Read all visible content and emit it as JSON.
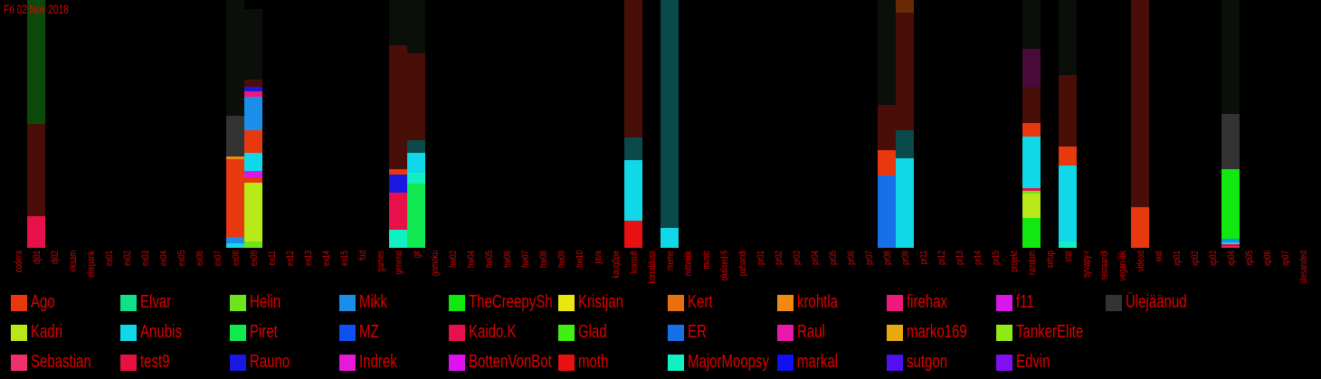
{
  "header": {
    "date": "Fri 02 Nov 2018"
  },
  "colors": {
    "label": "#e00000",
    "background": "#000000"
  },
  "chart_data": {
    "type": "bar",
    "stacked": true,
    "categories": [
      "codera",
      "dj01",
      "dj02",
      "eksam",
      "eltepank",
      "ex01",
      "ex02",
      "ex03",
      "ex04",
      "ex05",
      "ex06",
      "ex07",
      "ex08",
      "ex09",
      "ex11",
      "ex12",
      "ex13",
      "ex14",
      "ex15",
      "fud",
      "games",
      "general",
      "git",
      "gomoku",
      "hw03",
      "hw04",
      "hw05",
      "hw06",
      "hw07",
      "hw08",
      "hw09",
      "hw10",
      "java",
      "kaugõpe",
      "konsult",
      "korralduss",
      "meme",
      "mitteiiiik",
      "music",
      "olulised-fi",
      "pahandi",
      "pr01",
      "pr02",
      "pr03",
      "pr04",
      "pr05",
      "pr06",
      "pr07",
      "pr08",
      "pr09",
      "pr11",
      "pr12",
      "pr13",
      "pr14",
      "pr15",
      "projekt",
      "random",
      "setup",
      "stat",
      "syvapy-r",
      "testaandi",
      "vegan-liik",
      "videod",
      "wat",
      "xp01",
      "xp02",
      "xp03",
      "xp04",
      "xp05",
      "xp06",
      "xp07",
      "ülesanded"
    ],
    "series_colors": {
      "Ago": "#e8380d",
      "Elvar": "#10e088",
      "Helin": "#6ee41a",
      "Mikk": "#1a8ee8",
      "TheCreepySh": "#10e810",
      "Kristjan": "#e8e810",
      "Kert": "#e87010",
      "krohtla": "#f08a10",
      "firehax": "#f0187a",
      "f11": "#d818e8",
      "Ülejäänud": "#333333",
      "Kadri": "#b8e818",
      "Anubis": "#10d8e8",
      "Piret": "#10e850",
      "MZ": "#1050f0",
      "Kaido.K": "#e8104a",
      "Glad": "#40f010",
      "ER": "#1870e8",
      "Raul": "#e818a8",
      "marko169": "#e8a810",
      "TankerElite": "#90e818",
      "Sebastian": "#f0306a",
      "test9": "#e81040",
      "Rauno": "#1818e0",
      "Indrek": "#e818d8",
      "BottenVonBot": "#e010f0",
      "moth": "#e81010",
      "MajorMoopsy": "#10f0c0",
      "markal": "#1010f0",
      "sutgon": "#5010f0",
      "Edvin": "#8010f0",
      "faded-dark": "#0a0f0a",
      "faded-red": "#4a0e08",
      "faded-green": "#0c4a0c",
      "faded-teal": "#0a4a4a",
      "faded-purple": "#4a0a3a",
      "faded-orange": "#6a2a04"
    },
    "bars": [
      {
        "category": "dj01",
        "segments": [
          [
            "Kaido.K",
            35
          ],
          [
            "faded-red",
            102
          ],
          [
            "faded-green",
            137
          ]
        ]
      },
      {
        "category": "ex08",
        "segments": [
          [
            "Anubis",
            5
          ],
          [
            "Mikk",
            7
          ],
          [
            "Ago",
            86
          ],
          [
            "krohtla",
            3
          ],
          [
            "Ülejäänud",
            45
          ],
          [
            "faded-dark",
            128
          ]
        ]
      },
      {
        "category": "ex09",
        "segments": [
          [
            "Helin",
            7
          ],
          [
            "Kadri",
            65
          ],
          [
            "Ago",
            6
          ],
          [
            "f11",
            7
          ],
          [
            "Anubis",
            20
          ],
          [
            "Ago",
            25
          ],
          [
            "Mikk",
            37
          ],
          [
            "firehax",
            6
          ],
          [
            "Rauno",
            5
          ],
          [
            "faded-red",
            8
          ],
          [
            "faded-dark",
            78
          ]
        ]
      },
      {
        "category": "general",
        "segments": [
          [
            "MajorMoopsy",
            20
          ],
          [
            "Kaido.K",
            41
          ],
          [
            "Rauno",
            20
          ],
          [
            "Ago",
            6
          ],
          [
            "faded-red",
            137
          ],
          [
            "faded-dark",
            50
          ]
        ]
      },
      {
        "category": "git",
        "segments": [
          [
            "Piret",
            71
          ],
          [
            "MajorMoopsy",
            12
          ],
          [
            "Anubis",
            22
          ],
          [
            "faded-teal",
            14
          ],
          [
            "faded-red",
            96
          ],
          [
            "faded-dark",
            59
          ]
        ]
      },
      {
        "category": "konsult",
        "segments": [
          [
            "moth",
            30
          ],
          [
            "Anubis",
            67
          ],
          [
            "faded-teal",
            25
          ],
          [
            "faded-red",
            152
          ]
        ]
      },
      {
        "category": "meme",
        "segments": [
          [
            "Anubis",
            22
          ],
          [
            "faded-teal",
            252
          ]
        ]
      },
      {
        "category": "pr08",
        "segments": [
          [
            "ER",
            80
          ],
          [
            "Ago",
            28
          ],
          [
            "faded-red",
            50
          ],
          [
            "faded-dark",
            116
          ]
        ]
      },
      {
        "category": "pr09",
        "segments": [
          [
            "Anubis",
            99
          ],
          [
            "faded-teal",
            31
          ],
          [
            "faded-red",
            130
          ],
          [
            "faded-orange",
            14
          ]
        ]
      },
      {
        "category": "random",
        "segments": [
          [
            "TheCreepySh",
            33
          ],
          [
            "Kadri",
            27
          ],
          [
            "Helin",
            3
          ],
          [
            "Kaido.K",
            3
          ],
          [
            "Anubis",
            57
          ],
          [
            "Ago",
            15
          ],
          [
            "faded-red",
            40
          ],
          [
            "faded-purple",
            42
          ],
          [
            "faded-dark",
            54
          ]
        ]
      },
      {
        "category": "stat",
        "segments": [
          [
            "MajorMoopsy",
            7
          ],
          [
            "Anubis",
            84
          ],
          [
            "Ago",
            21
          ],
          [
            "faded-red",
            79
          ],
          [
            "faded-dark",
            83
          ]
        ]
      },
      {
        "category": "videod",
        "segments": [
          [
            "Ago",
            45
          ],
          [
            "faded-red",
            229
          ]
        ]
      },
      {
        "category": "xp04",
        "segments": [
          [
            "firehax",
            2
          ],
          [
            "moth",
            2
          ],
          [
            "Anubis",
            2
          ],
          [
            "Mikk",
            4
          ],
          [
            "TheCreepySh",
            77
          ],
          [
            "Ülejäänud",
            61
          ],
          [
            "faded-dark",
            126
          ]
        ]
      }
    ],
    "legend": [
      [
        "Ago",
        "Elvar",
        "Helin",
        "Mikk",
        "TheCreepySh",
        "Kristjan",
        "Kert",
        "krohtla",
        "firehax",
        "f11",
        "Ülejäänud"
      ],
      [
        "Kadri",
        "Anubis",
        "Piret",
        "MZ",
        "Kaido.K",
        "Glad",
        "ER",
        "Raul",
        "marko169",
        "TankerElite"
      ],
      [
        "Sebastian",
        "test9",
        "Rauno",
        "Indrek",
        "BottenVonBot",
        "moth",
        "MajorMoopsy",
        "markal",
        "sutgon",
        "Edvin"
      ]
    ],
    "title": "",
    "xlabel": "",
    "ylabel": "",
    "ylim": [
      0,
      274
    ],
    "grid": false,
    "legend_position": "bottom"
  }
}
